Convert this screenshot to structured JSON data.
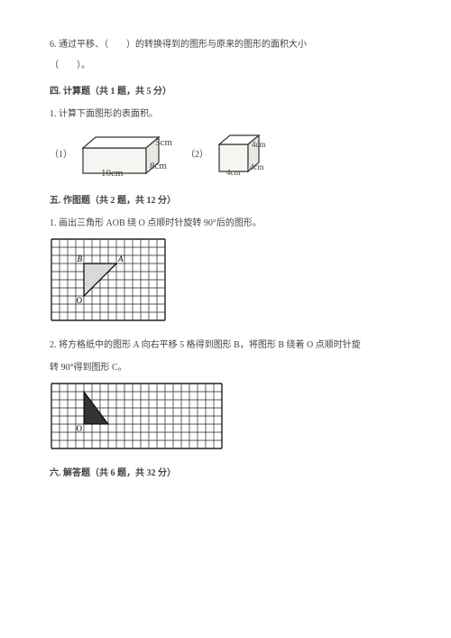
{
  "text_color": "#444444",
  "font_size_body": 10,
  "font_size_small": 9,
  "q6": {
    "line1": "6. 通过平移、（　　）的转换得到的图形与原来的图形的面积大小",
    "line2": "（　　）。"
  },
  "sec4": {
    "heading": "四. 计算题（共 1 题，共 5 分）",
    "q1": "1. 计算下面图形的表面积。",
    "fig1_label": "（1）",
    "fig2_label": "（2）",
    "fig1": {
      "type": "rect-prism",
      "w_label": "10cm",
      "d_label": "8cm",
      "h_label": "5cm",
      "stroke": "#333333",
      "fill": "#f5f5f2"
    },
    "fig2": {
      "type": "cube",
      "edge_label": "4cm",
      "stroke": "#333333",
      "fill": "#f5f5f2"
    }
  },
  "sec5": {
    "heading": "五. 作图题（共 2 题，共 12 分）",
    "q1": "1. 画出三角形 AOB 绕 O 点顺时针旋转 90°后的图形。",
    "grid1": {
      "cols": 14,
      "rows": 10,
      "cell": 9,
      "stroke": "#222222",
      "tri": {
        "O": [
          4,
          7
        ],
        "B": [
          4,
          3
        ],
        "A": [
          8,
          3
        ],
        "fill": "#d9d9d9",
        "labels": {
          "B": "B",
          "A": "A",
          "O": "O"
        }
      }
    },
    "q2_line1": "2. 将方格纸中的图形 A 向右平移 5 格得到图形 B，将图形 B 绕着 O 点顺时针旋",
    "q2_line2": "转 90°得到图形 C。",
    "grid2": {
      "cols": 21,
      "rows": 8,
      "cell": 9,
      "stroke": "#222222",
      "tri": {
        "p1": [
          4,
          1
        ],
        "p2": [
          4,
          5
        ],
        "p3": [
          7,
          5
        ],
        "fill": "#333333",
        "Olabel": "O"
      }
    }
  },
  "sec6": {
    "heading": "六. 解答题（共 6 题，共 32 分）"
  }
}
